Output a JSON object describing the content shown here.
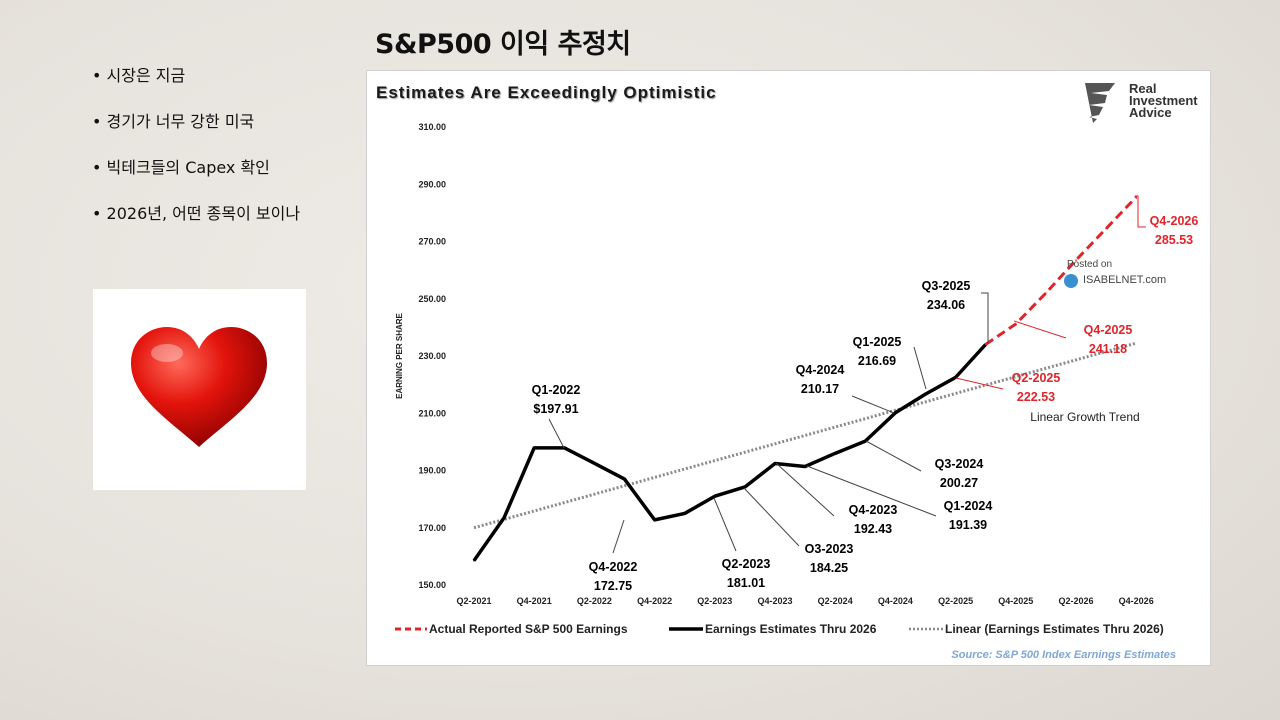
{
  "slide": {
    "title": "S&P500 이익 추정치",
    "bullets": [
      "시장은 지금",
      "경기가 너무 강한 미국",
      "빅테크들의 Capex 확인",
      "2026년, 어떤 종목이 보이나"
    ]
  },
  "chart_data": {
    "type": "line",
    "title": "Estimates Are Exceedingly Optimistic",
    "ylabel": "EARNING PER SHARE",
    "xlabel": "",
    "ylim": [
      150,
      310
    ],
    "y_ticks": [
      "150.00",
      "170.00",
      "190.00",
      "210.00",
      "230.00",
      "250.00",
      "270.00",
      "290.00",
      "310.00"
    ],
    "x_ticks": [
      "Q2-2021",
      "Q4-2021",
      "Q2-2022",
      "Q4-2022",
      "Q2-2023",
      "Q4-2023",
      "Q2-2024",
      "Q4-2024",
      "Q2-2025",
      "Q4-2025",
      "Q2-2026",
      "Q4-2026"
    ],
    "quarters": [
      "Q2-2021",
      "Q3-2021",
      "Q4-2021",
      "Q1-2022",
      "Q2-2022",
      "Q3-2022",
      "Q4-2022",
      "Q1-2023",
      "Q2-2023",
      "Q3-2023",
      "Q4-2023",
      "Q1-2024",
      "Q2-2024",
      "Q3-2024",
      "Q4-2024",
      "Q1-2025",
      "Q2-2025",
      "Q3-2025",
      "Q4-2025",
      "Q1-2026",
      "Q2-2026",
      "Q3-2026",
      "Q4-2026"
    ],
    "series": [
      {
        "name": "Earnings Estimates Thru 2026",
        "color": "#000000",
        "style": "solid",
        "start_index": 0,
        "values": [
          158.5,
          173.5,
          197.91,
          197.91,
          192.5,
          187.0,
          172.75,
          175.0,
          181.01,
          184.25,
          192.43,
          191.39,
          196.0,
          200.27,
          210.17,
          216.69,
          222.53,
          234.06
        ]
      },
      {
        "name": "Actual Reported S&P 500 Earnings",
        "color": "#e0242b",
        "style": "dashed",
        "start_index": 17,
        "values": [
          234.06,
          241.18,
          252.0,
          263.5,
          274.5,
          285.53
        ]
      },
      {
        "name": "Linear (Earnings Estimates Thru 2026)",
        "color": "#8a8a8a",
        "style": "dotted",
        "start_index": 0,
        "endpoints": [
          170.0,
          234.5
        ]
      }
    ],
    "annotations": [
      {
        "q": "Q1-2022",
        "v": "$197.91",
        "color": "#000000"
      },
      {
        "q": "Q4-2022",
        "v": "172.75",
        "color": "#000000"
      },
      {
        "q": "Q2-2023",
        "v": "181.01",
        "color": "#000000"
      },
      {
        "q": "O3-2023",
        "v": "184.25",
        "color": "#000000"
      },
      {
        "q": "Q4-2023",
        "v": "192.43",
        "color": "#000000"
      },
      {
        "q": "Q1-2024",
        "v": "191.39",
        "color": "#000000"
      },
      {
        "q": "Q3-2024",
        "v": "200.27",
        "color": "#000000"
      },
      {
        "q": "Q4-2024",
        "v": "210.17",
        "color": "#000000"
      },
      {
        "q": "Q1-2025",
        "v": "216.69",
        "color": "#000000"
      },
      {
        "q": "Q2-2025",
        "v": "222.53",
        "color": "#e0242b"
      },
      {
        "q": "Q3-2025",
        "v": "234.06",
        "color": "#000000"
      },
      {
        "q": "Q4-2025",
        "v": "241.18",
        "color": "#e0242b"
      },
      {
        "q": "Q4-2026",
        "v": "285.53",
        "color": "#e0242b"
      }
    ],
    "trend_label": "Linear Growth Trend",
    "legend": [
      "Actual Reported S&P 500 Earnings",
      "Earnings Estimates Thru 2026",
      "Linear (Earnings Estimates Thru 2026)"
    ],
    "legend_position": "bottom",
    "source": "Source: S&P 500 Index Earnings Estimates",
    "logo": [
      "Real",
      "Investment",
      "Advice"
    ],
    "watermark": [
      "Posted on",
      "ISABELNET.com"
    ]
  }
}
